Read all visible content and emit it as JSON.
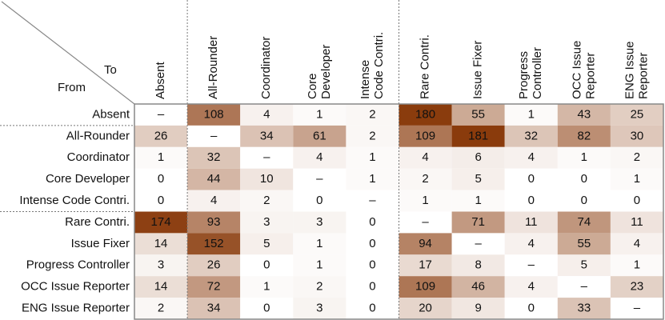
{
  "chart_data": {
    "type": "heatmap",
    "corner_to": "To",
    "corner_from": "From",
    "categories": [
      "Absent",
      "All-Rounder",
      "Coordinator",
      "Core Developer",
      "Intense Code Contri.",
      "Rare Contri.",
      "Issue Fixer",
      "Progress Controller",
      "OCC Issue Reporter",
      "ENG Issue Reporter"
    ],
    "column_labels": [
      [
        "Absent"
      ],
      [
        "All-Rounder"
      ],
      [
        "Coordinator"
      ],
      [
        "Core",
        "Developer"
      ],
      [
        "Intense",
        "Code Contri."
      ],
      [
        "Rare Contri."
      ],
      [
        "Issue Fixer"
      ],
      [
        "Progress",
        "Controller"
      ],
      [
        "OCC Issue",
        "Reporter"
      ],
      [
        "ENG Issue",
        "Reporter"
      ]
    ],
    "empty_label": "–",
    "values": [
      [
        null,
        108,
        4,
        1,
        2,
        180,
        55,
        1,
        43,
        25
      ],
      [
        26,
        null,
        34,
        61,
        2,
        109,
        181,
        32,
        82,
        30
      ],
      [
        1,
        32,
        null,
        4,
        1,
        4,
        6,
        4,
        1,
        2
      ],
      [
        0,
        44,
        10,
        null,
        1,
        2,
        5,
        0,
        0,
        1
      ],
      [
        0,
        4,
        2,
        0,
        null,
        1,
        1,
        0,
        0,
        0
      ],
      [
        174,
        93,
        3,
        3,
        0,
        null,
        71,
        11,
        74,
        11
      ],
      [
        14,
        152,
        5,
        1,
        0,
        94,
        null,
        4,
        55,
        4
      ],
      [
        3,
        26,
        0,
        1,
        0,
        17,
        8,
        null,
        5,
        1
      ],
      [
        14,
        72,
        1,
        2,
        0,
        109,
        46,
        4,
        null,
        23
      ],
      [
        2,
        34,
        0,
        3,
        0,
        20,
        9,
        0,
        33,
        null
      ]
    ],
    "color_low": "#ffffff",
    "color_high": "#8a3b0c"
  }
}
